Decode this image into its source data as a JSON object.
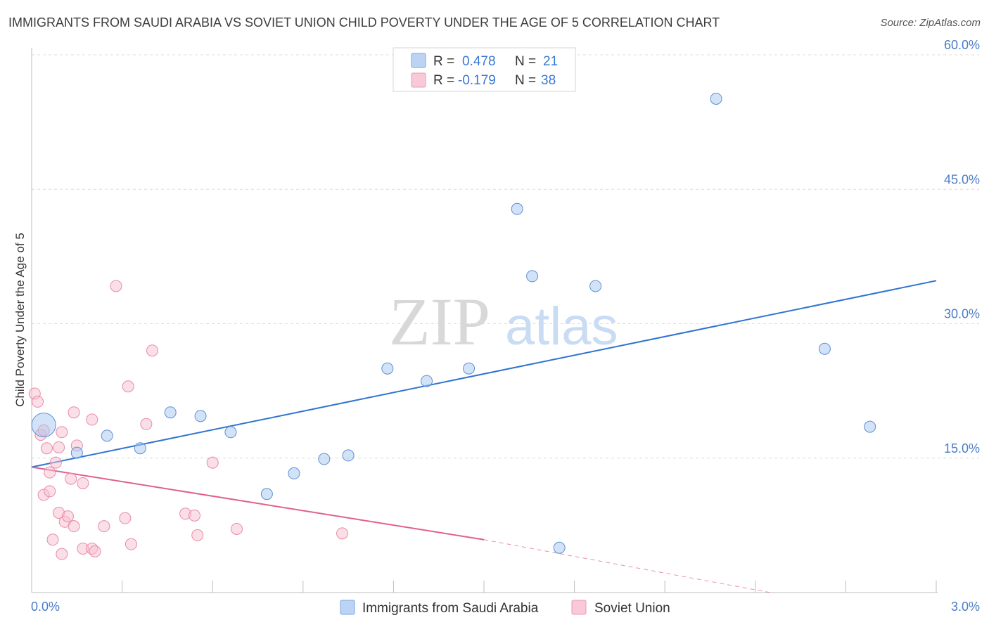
{
  "title": "IMMIGRANTS FROM SAUDI ARABIA VS SOVIET UNION CHILD POVERTY UNDER THE AGE OF 5 CORRELATION CHART",
  "source": "Source: ZipAtlas.com",
  "watermark": {
    "zip": "ZIP",
    "atlas": "atlas"
  },
  "chart_data": {
    "type": "scatter",
    "title": "IMMIGRANTS FROM SAUDI ARABIA VS SOVIET UNION CHILD POVERTY UNDER THE AGE OF 5 CORRELATION CHART",
    "xlabel": "",
    "ylabel": "Child Poverty Under the Age of 5",
    "xlim": [
      0.0,
      3.0
    ],
    "ylim": [
      0.0,
      60.0
    ],
    "x_tick_labels": [
      "0.0%",
      "3.0%"
    ],
    "y_tick_labels": [
      "15.0%",
      "30.0%",
      "45.0%",
      "60.0%"
    ],
    "y_ticks": [
      15,
      30,
      45,
      60
    ],
    "legend": {
      "position": "top-center",
      "rows": [
        {
          "r_label": "R =",
          "r_value": "0.478",
          "n_label": "N =",
          "n_value": "21"
        },
        {
          "r_label": "R =",
          "r_value": "-0.179",
          "n_label": "N =",
          "n_value": "38"
        }
      ]
    },
    "series": [
      {
        "name": "Immigrants from Saudi Arabia",
        "color": "#a8c8f0",
        "edge": "#5b8fd6",
        "line_color": "#2f74d0",
        "trend": {
          "x0": 0.0,
          "y0": 14.0,
          "x1": 3.0,
          "y1": 34.8
        },
        "points": [
          {
            "x": 0.04,
            "y": 18.7,
            "big": true
          },
          {
            "x": 0.15,
            "y": 15.6
          },
          {
            "x": 0.25,
            "y": 17.5
          },
          {
            "x": 0.36,
            "y": 16.1
          },
          {
            "x": 0.46,
            "y": 20.1
          },
          {
            "x": 0.56,
            "y": 19.7
          },
          {
            "x": 0.66,
            "y": 17.9
          },
          {
            "x": 0.78,
            "y": 11.0
          },
          {
            "x": 0.87,
            "y": 13.3
          },
          {
            "x": 0.97,
            "y": 14.9
          },
          {
            "x": 1.05,
            "y": 15.3
          },
          {
            "x": 1.18,
            "y": 25.0
          },
          {
            "x": 1.31,
            "y": 23.6
          },
          {
            "x": 1.45,
            "y": 25.0
          },
          {
            "x": 1.61,
            "y": 42.8
          },
          {
            "x": 1.66,
            "y": 35.3
          },
          {
            "x": 1.75,
            "y": 5.0
          },
          {
            "x": 1.87,
            "y": 34.2
          },
          {
            "x": 2.27,
            "y": 55.1
          },
          {
            "x": 2.63,
            "y": 27.2
          },
          {
            "x": 2.78,
            "y": 18.5
          }
        ]
      },
      {
        "name": "Soviet Union",
        "color": "#f7bfd0",
        "edge": "#e88aa8",
        "line_color": "#e0608c",
        "trend": {
          "x0": 0.0,
          "y0": 14.0,
          "x1": 1.5,
          "y1": 5.9
        },
        "trend_dashed": {
          "x0": 1.5,
          "y0": 5.9,
          "x1": 2.45,
          "y1": 0.0
        },
        "points": [
          {
            "x": 0.01,
            "y": 22.2
          },
          {
            "x": 0.02,
            "y": 21.3
          },
          {
            "x": 0.03,
            "y": 17.6
          },
          {
            "x": 0.04,
            "y": 18.1
          },
          {
            "x": 0.04,
            "y": 10.9
          },
          {
            "x": 0.05,
            "y": 16.1
          },
          {
            "x": 0.06,
            "y": 13.4
          },
          {
            "x": 0.06,
            "y": 11.3
          },
          {
            "x": 0.07,
            "y": 5.9
          },
          {
            "x": 0.08,
            "y": 14.5
          },
          {
            "x": 0.09,
            "y": 16.2
          },
          {
            "x": 0.09,
            "y": 8.9
          },
          {
            "x": 0.1,
            "y": 17.9
          },
          {
            "x": 0.1,
            "y": 4.3
          },
          {
            "x": 0.11,
            "y": 7.9
          },
          {
            "x": 0.12,
            "y": 8.5
          },
          {
            "x": 0.13,
            "y": 12.7
          },
          {
            "x": 0.14,
            "y": 7.4
          },
          {
            "x": 0.14,
            "y": 20.1
          },
          {
            "x": 0.15,
            "y": 16.4
          },
          {
            "x": 0.17,
            "y": 12.2
          },
          {
            "x": 0.17,
            "y": 4.9
          },
          {
            "x": 0.2,
            "y": 4.9
          },
          {
            "x": 0.2,
            "y": 19.3
          },
          {
            "x": 0.21,
            "y": 4.6
          },
          {
            "x": 0.24,
            "y": 7.4
          },
          {
            "x": 0.28,
            "y": 34.2
          },
          {
            "x": 0.31,
            "y": 8.3
          },
          {
            "x": 0.32,
            "y": 23.0
          },
          {
            "x": 0.33,
            "y": 5.4
          },
          {
            "x": 0.38,
            "y": 18.8
          },
          {
            "x": 0.4,
            "y": 27.0
          },
          {
            "x": 0.51,
            "y": 8.8
          },
          {
            "x": 0.54,
            "y": 8.6
          },
          {
            "x": 0.55,
            "y": 6.4
          },
          {
            "x": 0.6,
            "y": 14.5
          },
          {
            "x": 0.68,
            "y": 7.1
          },
          {
            "x": 1.03,
            "y": 6.6
          }
        ]
      }
    ]
  }
}
